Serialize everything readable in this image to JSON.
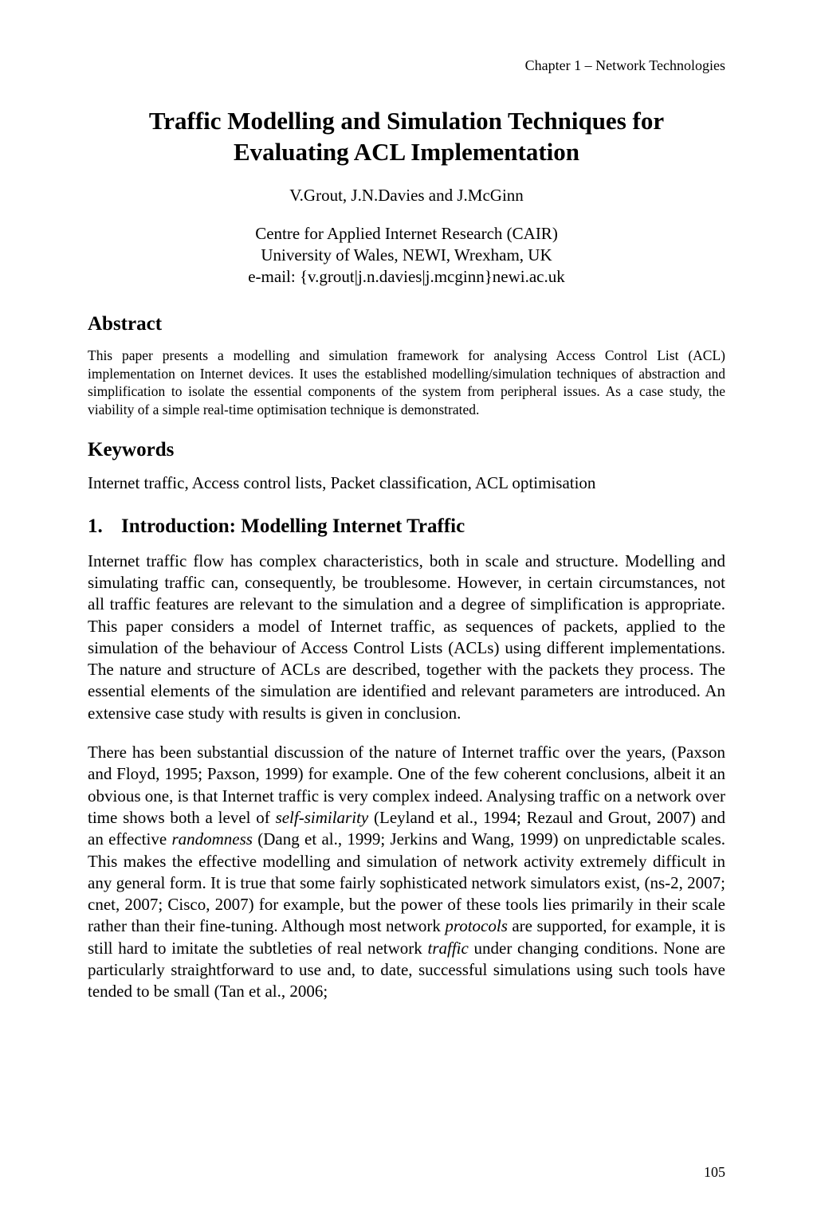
{
  "running_header": "Chapter 1 – Network Technologies",
  "title_line1": "Traffic Modelling and Simulation Techniques for",
  "title_line2": "Evaluating ACL Implementation",
  "authors": "V.Grout, J.N.Davies and J.McGinn",
  "affiliation_line1": "Centre for Applied Internet Research (CAIR)",
  "affiliation_line2": "University of Wales, NEWI, Wrexham, UK",
  "affiliation_line3": "e-mail: {v.grout|j.n.davies|j.mcginn}newi.ac.uk",
  "abstract_heading": "Abstract",
  "abstract_text": "This paper presents a modelling and simulation framework for analysing Access Control List (ACL) implementation on Internet devices.  It uses the established modelling/simulation techniques of abstraction and simplification to isolate the essential components of the system from peripheral issues.  As a case study, the viability of a simple real-time optimisation technique is demonstrated.",
  "keywords_heading": "Keywords",
  "keywords_text": "Internet traffic, Access control lists, Packet classification, ACL optimisation",
  "section1_num": "1.",
  "section1_title": "Introduction: Modelling Internet Traffic",
  "para1": "Internet traffic flow has complex characteristics, both in scale and structure.  Modelling and simulating traffic can, consequently, be troublesome.  However, in certain circumstances, not all traffic features are relevant to the simulation and a degree of simplification is appropriate.  This paper considers a model of Internet traffic, as sequences of packets, applied to the simulation of the behaviour of Access Control Lists (ACLs) using different implementations.  The nature and structure of ACLs are described, together with the packets they process.  The essential elements of the simulation are identified and relevant parameters are introduced.  An extensive case study with results is given in conclusion.",
  "para2_parts": [
    {
      "t": "There has been substantial discussion of the nature of Internet traffic over the years, (Paxson and Floyd, 1995; Paxson, 1999) for example.  One of the few coherent conclusions, albeit it an obvious one, is that Internet traffic is very complex indeed.  Analysing traffic on a network over time shows both a level of ",
      "i": false
    },
    {
      "t": "self-similarity",
      "i": true
    },
    {
      "t": " (Leyland et al., 1994; Rezaul and Grout, 2007) and an effective ",
      "i": false
    },
    {
      "t": "randomness",
      "i": true
    },
    {
      "t": " (Dang et al., 1999; Jerkins and Wang, 1999) on unpredictable scales.  This makes the effective modelling and simulation of network activity extremely difficult in any general form.  It is true that some fairly sophisticated network simulators exist, (ns-2, 2007; cnet, 2007; Cisco, 2007) for example, but the power of these tools lies primarily in their scale rather than their fine-tuning.  Although most network ",
      "i": false
    },
    {
      "t": "protocols",
      "i": true
    },
    {
      "t": " are supported, for example, it is still hard to imitate the subtleties of real network ",
      "i": false
    },
    {
      "t": "traffic",
      "i": true
    },
    {
      "t": " under changing conditions.  None are particularly straightforward to use and, to date, successful simulations using such tools have tended to be small (Tan et al., 2006;",
      "i": false
    }
  ],
  "page_number": "105"
}
